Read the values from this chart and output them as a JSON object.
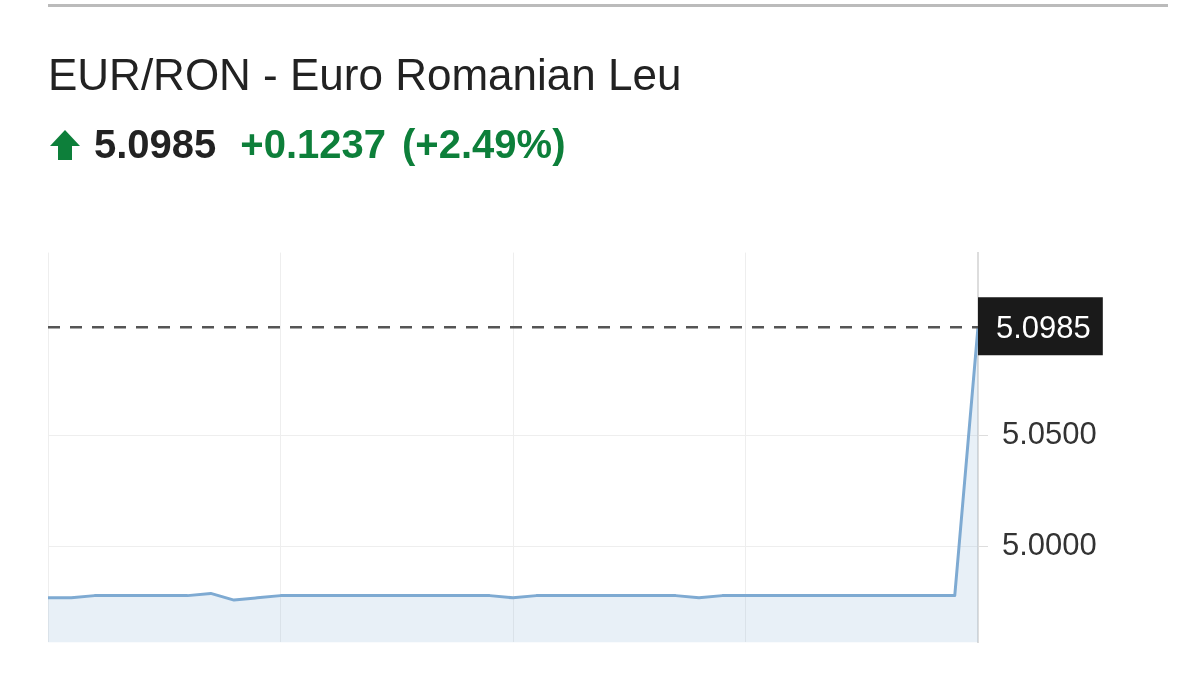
{
  "chart_data": {
    "type": "area",
    "title": "EUR/RON - Euro Romanian Leu",
    "subtitle": "5.0985 +0.1237 (+2.49%)",
    "categories": [
      null,
      null,
      null,
      null,
      null,
      null,
      null,
      null,
      null,
      null,
      null,
      null,
      null,
      null,
      null,
      null,
      null,
      null,
      null,
      null,
      null,
      null,
      null,
      null,
      null,
      null,
      null,
      null,
      null,
      null,
      null,
      null,
      null,
      null,
      null,
      null,
      null,
      null,
      null,
      null,
      null
    ],
    "series": [
      {
        "color": "#7eaad2",
        "values": [
          4.977,
          4.977,
          4.978,
          4.978,
          4.978,
          4.978,
          4.978,
          4.979,
          4.976,
          4.977,
          4.978,
          4.978,
          4.978,
          4.978,
          4.978,
          4.978,
          4.978,
          4.978,
          4.978,
          4.978,
          4.977,
          4.978,
          4.978,
          4.978,
          4.978,
          4.978,
          4.978,
          4.978,
          4.977,
          4.978,
          4.978,
          4.978,
          4.978,
          4.978,
          4.978,
          4.978,
          4.978,
          4.978,
          4.978,
          4.978,
          5.0985
        ]
      }
    ],
    "ylim": [
      4.957,
      5.132
    ],
    "yticks": [
      {
        "value": 5.0,
        "label": "5.0000"
      },
      {
        "value": 5.05,
        "label": "5.0500"
      }
    ],
    "ref_lines": [
      {
        "axis": "y",
        "value": 5.0985,
        "label": "5.0985",
        "color": "#555555",
        "line_style": "dashed"
      }
    ],
    "grid": true,
    "legend": false,
    "marker": "none",
    "line_style": "solid"
  }
}
